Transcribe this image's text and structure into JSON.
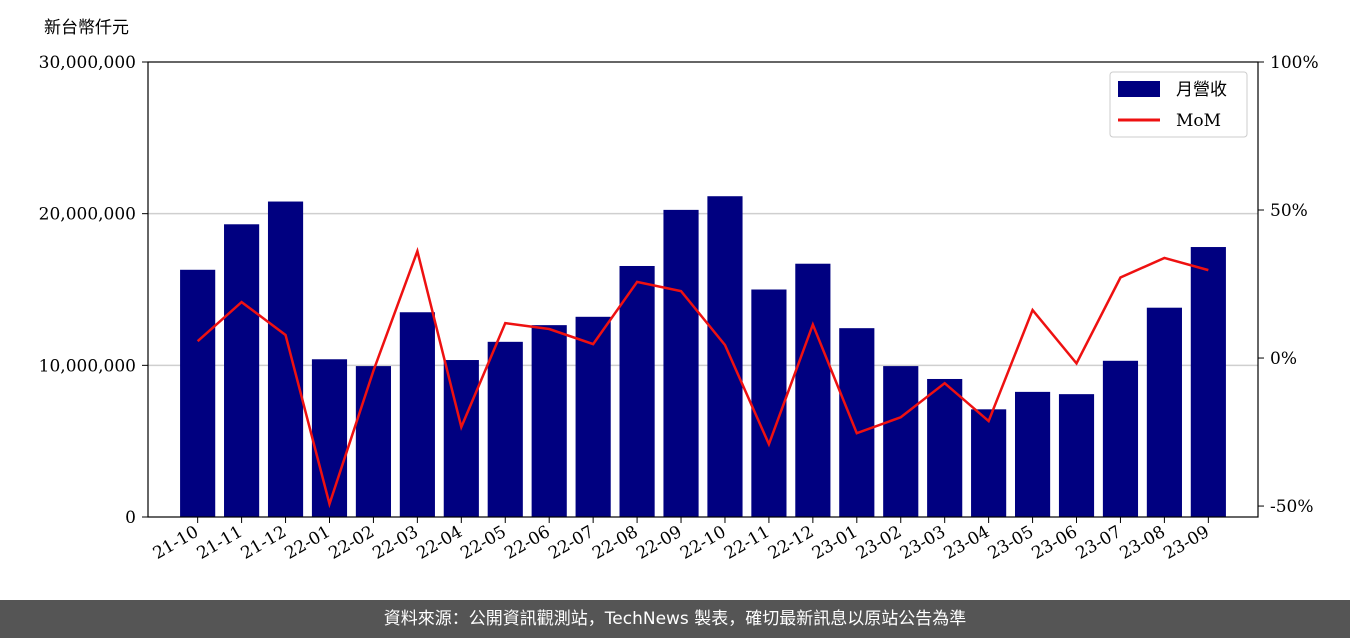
{
  "chart_data": {
    "type": "bar",
    "y_label": "新台幣仟元",
    "categories": [
      "21-10",
      "21-11",
      "21-12",
      "22-01",
      "22-02",
      "22-03",
      "22-04",
      "22-05",
      "22-06",
      "22-07",
      "22-08",
      "22-09",
      "22-10",
      "22-11",
      "22-12",
      "23-01",
      "23-02",
      "23-03",
      "23-04",
      "23-05",
      "23-06",
      "23-07",
      "23-08",
      "23-09"
    ],
    "series": [
      {
        "name": "月營收",
        "type": "bar",
        "color": "#000080",
        "values": [
          16300000,
          19300000,
          20800000,
          10400000,
          9950000,
          13500000,
          10350000,
          11550000,
          12650000,
          13200000,
          16550000,
          20250000,
          21150000,
          15000000,
          16700000,
          12450000,
          9950000,
          9100000,
          7100000,
          8250000,
          8100000,
          10300000,
          13800000,
          17800000
        ]
      },
      {
        "name": "MoM",
        "type": "line",
        "axis": "y2",
        "color": "#ee1111",
        "values": [
          5.7,
          18.9,
          7.8,
          -49.3,
          -4.3,
          36.1,
          -23.3,
          11.8,
          9.8,
          4.7,
          25.7,
          22.6,
          4.4,
          -29.1,
          11.3,
          -25.4,
          -20.0,
          -8.5,
          -21.3,
          16.2,
          -1.8,
          27.2,
          33.8,
          29.7
        ]
      }
    ],
    "ylim": [
      0,
      30000000
    ],
    "yticks": [
      0,
      {
        "value": 10000000,
        "label": "10,000,000"
      },
      {
        "value": 20000000,
        "label": "20,000,000"
      },
      {
        "value": 30000000,
        "label": "30,000,000"
      }
    ],
    "y2lim": [
      -53.7,
      100
    ],
    "y2ticks": [
      {
        "value": -50,
        "label": "-50%"
      },
      {
        "value": 0,
        "label": "0%"
      },
      {
        "value": 50,
        "label": "50%"
      },
      {
        "value": 100,
        "label": "100%"
      }
    ],
    "grid": true,
    "legend": "upper right"
  },
  "footer": "資料來源：公開資訊觀測站，TechNews 製表，確切最新訊息以原站公告為準"
}
